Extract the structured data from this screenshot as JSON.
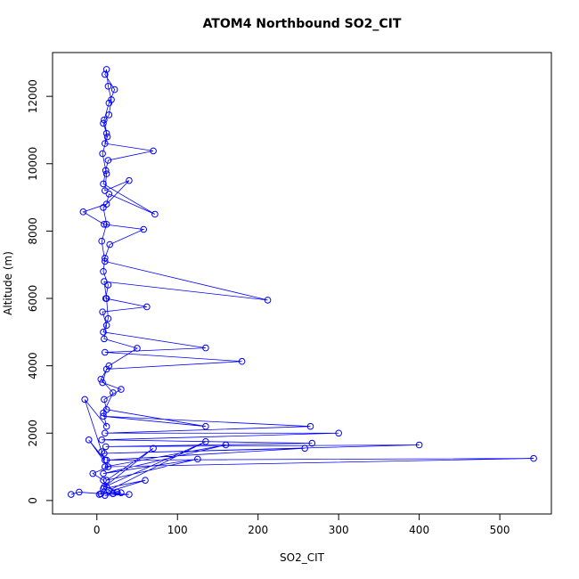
{
  "chart_data": {
    "type": "line",
    "markers": "open-circle",
    "title": "ATOM4 Northbound SO2_CIT",
    "x_label": "SO2_CIT",
    "y_label": "Altitude (m)",
    "xlim": [
      -55,
      564
    ],
    "ylim": [
      -400,
      13300
    ],
    "xticks": [
      0,
      100,
      200,
      300,
      400,
      500
    ],
    "yticks": [
      0,
      2000,
      4000,
      6000,
      8000,
      10000,
      12000
    ],
    "series": [
      {
        "color": "#0000ff",
        "x": [
          -32,
          -22,
          5,
          30,
          12,
          8,
          -5,
          14,
          -10,
          10,
          6,
          -15,
          12,
          8,
          20,
          5,
          15,
          50,
          9,
          12,
          7,
          62,
          11,
          14,
          8,
          10,
          16,
          58,
          9,
          -17,
          12,
          15,
          72,
          8,
          11,
          14,
          70,
          10,
          12,
          8,
          15,
          18,
          14,
          12,
          10,
          22,
          15,
          9,
          13,
          7,
          12,
          10,
          40,
          8,
          12,
          6,
          10,
          212,
          9,
          12,
          14,
          8,
          135,
          10,
          180,
          12,
          7,
          30,
          9,
          12,
          135,
          8,
          265,
          10,
          300,
          6,
          267,
          11,
          400,
          9,
          258,
          12,
          542,
          10,
          160,
          8,
          125,
          12,
          70,
          9,
          135,
          15,
          20,
          40,
          10,
          25,
          5,
          8,
          60,
          3
        ],
        "y": [
          180,
          250,
          200,
          230,
          400,
          600,
          800,
          1000,
          1800,
          1200,
          1450,
          3000,
          2200,
          2600,
          3200,
          3600,
          4000,
          4520,
          4800,
          5200,
          5600,
          5750,
          6000,
          6400,
          6800,
          7200,
          7600,
          8050,
          8200,
          8570,
          8800,
          9100,
          8500,
          9400,
          9800,
          10100,
          10380,
          10600,
          10900,
          11200,
          11450,
          11900,
          12300,
          12800,
          12650,
          12200,
          11800,
          11300,
          10800,
          10300,
          9700,
          9200,
          9500,
          8700,
          8200,
          7700,
          7100,
          5950,
          6500,
          6000,
          5400,
          5000,
          4530,
          4400,
          4130,
          3900,
          3500,
          3300,
          3000,
          2700,
          2200,
          2500,
          2200,
          2000,
          2000,
          1800,
          1700,
          1600,
          1650,
          1400,
          1550,
          1200,
          1250,
          1000,
          1650,
          800,
          1230,
          600,
          1550,
          400,
          1750,
          300,
          200,
          180,
          150,
          250,
          200,
          350,
          600,
          180
        ]
      }
    ]
  }
}
